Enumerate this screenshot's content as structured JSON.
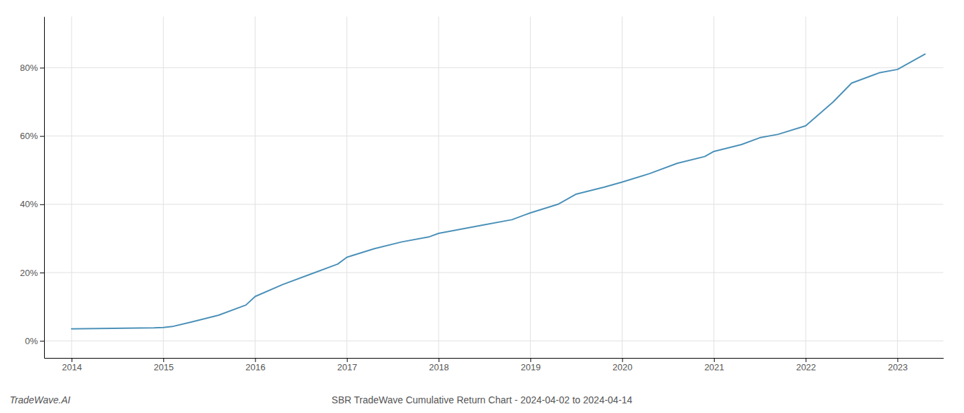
{
  "chart_data": {
    "type": "line",
    "title": "SBR TradeWave Cumulative Return Chart - 2024-04-02 to 2024-04-14",
    "annotations": [
      "TradeWave.AI"
    ],
    "color": "#4a90b8",
    "x": [
      2014.0,
      2014.3,
      2014.6,
      2014.9,
      2015.0,
      2015.1,
      2015.3,
      2015.6,
      2015.9,
      2016.0,
      2016.3,
      2016.6,
      2016.9,
      2017.0,
      2017.3,
      2017.6,
      2017.9,
      2018.0,
      2018.3,
      2018.5,
      2018.8,
      2019.0,
      2019.3,
      2019.5,
      2019.8,
      2020.0,
      2020.3,
      2020.6,
      2020.9,
      2021.0,
      2021.3,
      2021.5,
      2021.7,
      2022.0,
      2022.3,
      2022.5,
      2022.8,
      2023.0,
      2023.3
    ],
    "values": [
      3.5,
      3.6,
      3.7,
      3.8,
      3.9,
      4.2,
      5.5,
      7.5,
      10.5,
      13.0,
      16.5,
      19.5,
      22.5,
      24.5,
      27.0,
      29.0,
      30.5,
      31.5,
      33.0,
      34.0,
      35.5,
      37.5,
      40.0,
      43.0,
      45.0,
      46.5,
      49.0,
      52.0,
      54.0,
      55.5,
      57.5,
      59.5,
      60.5,
      63.0,
      70.0,
      75.5,
      78.5,
      79.5,
      84.0
    ],
    "xlim": [
      2013.7,
      2023.5
    ],
    "xticks": [
      2014,
      2015,
      2016,
      2017,
      2018,
      2019,
      2020,
      2021,
      2022,
      2023
    ],
    "ylim": [
      -5,
      95
    ],
    "yticks": [
      {
        "value": 0,
        "label": "0%"
      },
      {
        "value": 20,
        "label": "20%"
      },
      {
        "value": 40,
        "label": "40%"
      },
      {
        "value": 60,
        "label": "60%"
      },
      {
        "value": 80,
        "label": "80%"
      }
    ],
    "grid": true
  }
}
